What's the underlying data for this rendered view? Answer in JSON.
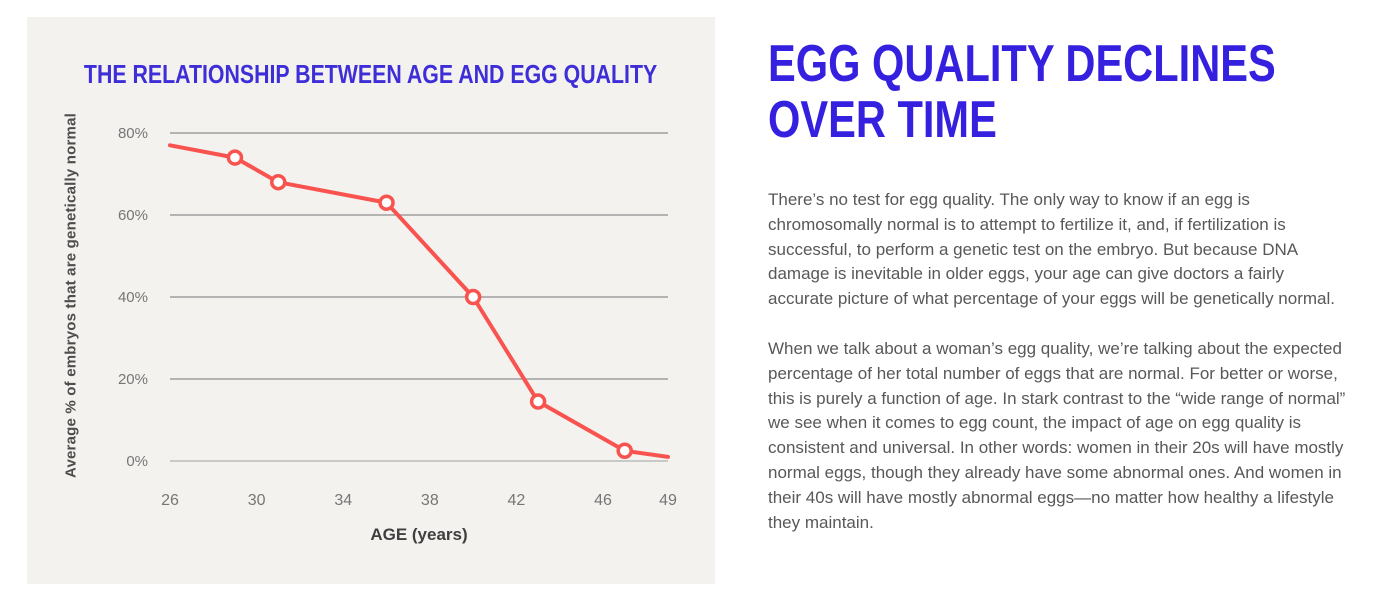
{
  "chart_panel": {
    "background": "#f4f2ef",
    "title_color": "#3e2ed8"
  },
  "chart_data": {
    "type": "line",
    "title": "THE RELATIONSHIP BETWEEN AGE AND EGG QUALITY",
    "xlabel": "AGE (years)",
    "ylabel": "Average % of embryos that are genetically normal",
    "x_ticks": [
      26,
      30,
      34,
      38,
      42,
      46,
      49
    ],
    "y_ticks": [
      0,
      20,
      40,
      60,
      80
    ],
    "y_tick_suffix": "%",
    "xlim": [
      26,
      49
    ],
    "ylim": [
      0,
      80
    ],
    "grid": true,
    "legend": false,
    "series": [
      {
        "name": "Average % of embryos that are genetically normal",
        "points": [
          {
            "x": 26,
            "y": 77,
            "marker": false
          },
          {
            "x": 29,
            "y": 74,
            "marker": true
          },
          {
            "x": 31,
            "y": 68,
            "marker": true
          },
          {
            "x": 36,
            "y": 63,
            "marker": true
          },
          {
            "x": 40,
            "y": 40,
            "marker": true
          },
          {
            "x": 43,
            "y": 14.5,
            "marker": true
          },
          {
            "x": 47,
            "y": 2.5,
            "marker": true
          },
          {
            "x": 49,
            "y": 1,
            "marker": false
          }
        ]
      }
    ],
    "colors": {
      "line": "#f8534f",
      "marker_fill": "#ffffff",
      "grid": "#8d8d8d",
      "baseline": "#cbc9c6",
      "tick_label": "#767676",
      "axis_label": "#4d4d4d"
    }
  },
  "article": {
    "heading_lines": [
      "EGG QUALITY DECLINES",
      "OVER TIME"
    ],
    "heading_color": "#3520e0",
    "paragraphs": [
      "There’s no test for egg quality. The only way to know if an egg is chromosomally normal is to attempt to fertilize it, and, if fertilization is successful, to perform a genetic test on the embryo. But because DNA damage is inevitable in older eggs, your age can give doctors a fairly accurate picture of what percentage of your eggs will be genetically normal.",
      "When we talk about a woman’s egg quality, we’re talking about the expected percentage of her total number of eggs that are normal. For better or worse, this is purely a function of age. In stark contrast to the “wide range of normal” we see when it comes to egg count, the impact of age on egg quality is consistent and universal. In other words: women in their 20s will have mostly normal eggs, though they already have some abnormal ones. And women in their 40s will have mostly abnormal eggs—no matter how healthy a lifestyle they maintain."
    ]
  }
}
